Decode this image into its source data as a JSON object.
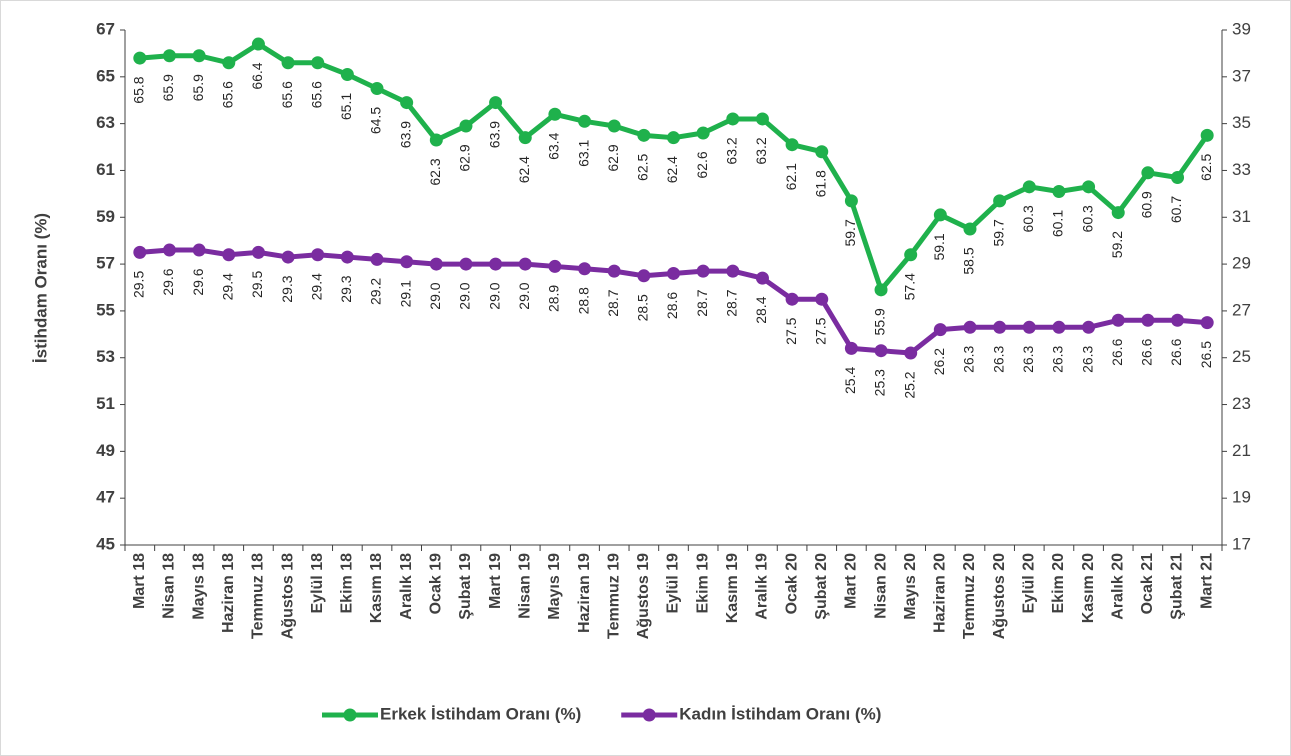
{
  "chart_data": {
    "type": "line",
    "y_label": "İstihdam Oranı (%)",
    "categories": [
      "Mart 18",
      "Nisan 18",
      "Mayıs 18",
      "Haziran 18",
      "Temmuz 18",
      "Ağustos 18",
      "Eylül 18",
      "Ekim 18",
      "Kasım 18",
      "Aralık 18",
      "Ocak 19",
      "Şubat 19",
      "Mart 19",
      "Nisan 19",
      "Mayıs 19",
      "Haziran 19",
      "Temmuz 19",
      "Ağustos 19",
      "Eylül 19",
      "Ekim 19",
      "Kasım 19",
      "Aralık 19",
      "Ocak 20",
      "Şubat 20",
      "Mart 20",
      "Nisan 20",
      "Mayıs 20",
      "Haziran 20",
      "Temmuz 20",
      "Ağustos 20",
      "Eylül 20",
      "Ekim 20",
      "Kasım 20",
      "Aralık 20",
      "Ocak 21",
      "Şubat 21",
      "Mart 21"
    ],
    "series": [
      {
        "name": "Erkek İstihdam Oranı (%)",
        "color": "#1fb14c",
        "axis": "y",
        "values": [
          65.8,
          65.9,
          65.9,
          65.6,
          66.4,
          65.6,
          65.6,
          65.1,
          64.5,
          63.9,
          62.3,
          62.9,
          63.9,
          62.4,
          63.4,
          63.1,
          62.9,
          62.5,
          62.4,
          62.6,
          63.2,
          63.2,
          62.1,
          61.8,
          59.7,
          55.9,
          57.4,
          59.1,
          58.5,
          59.7,
          60.3,
          60.1,
          60.3,
          59.2,
          60.9,
          60.7,
          62.5
        ],
        "value_labels": [
          "65.8",
          "65.9",
          "65.9",
          "65.6",
          "66.4",
          "65.6",
          "65.6",
          "65.1",
          "64.5",
          "63.9",
          "62.3",
          "62.9",
          "63.9",
          "62.4",
          "63.4",
          "63.1",
          "62.9",
          "62.5",
          "62.4",
          "62.6",
          "63.2",
          "63.2",
          "62.1",
          "61.8",
          "59.7",
          "55.9",
          "57.4",
          "59.1",
          "58.5",
          "59.7",
          "60.3",
          "60.1",
          "60.3",
          "59.2",
          "60.9",
          "60.7",
          "62.5"
        ]
      },
      {
        "name": "Kadın İstihdam Oranı (%)",
        "color": "#7a2ca0",
        "axis": "y2",
        "values": [
          29.5,
          29.6,
          29.6,
          29.4,
          29.5,
          29.3,
          29.4,
          29.3,
          29.2,
          29.1,
          29.0,
          29.0,
          29.0,
          29.0,
          28.9,
          28.8,
          28.7,
          28.5,
          28.6,
          28.7,
          28.7,
          28.4,
          27.5,
          27.5,
          25.4,
          25.3,
          25.2,
          26.2,
          26.3,
          26.3,
          26.3,
          26.3,
          26.3,
          26.6,
          26.6,
          26.6,
          26.5
        ],
        "value_labels": [
          "29.5",
          "29.6",
          "29.6",
          "29.4",
          "29.5",
          "29.3",
          "29.4",
          "29.3",
          "29.2",
          "29.1",
          "29.0",
          "29.0",
          "29.0",
          "29.0",
          "28.9",
          "28.8",
          "28.7",
          "28.5",
          "28.6",
          "28.7",
          "28.7",
          "28.4",
          "27.5",
          "27.5",
          "25.4",
          "25.3",
          "25.2",
          "26.2",
          "26.3",
          "26.3",
          "26.3",
          "26.3",
          "26.3",
          "26.6",
          "26.6",
          "26.6",
          "26.5"
        ]
      }
    ],
    "ylim": [
      45,
      67
    ],
    "yticks": [
      45,
      47,
      49,
      51,
      53,
      55,
      57,
      59,
      61,
      63,
      65,
      67
    ],
    "y2lim": [
      17,
      39
    ],
    "y2ticks": [
      17,
      19,
      21,
      23,
      25,
      27,
      29,
      31,
      33,
      35,
      37,
      39
    ],
    "legend": "bottom"
  }
}
